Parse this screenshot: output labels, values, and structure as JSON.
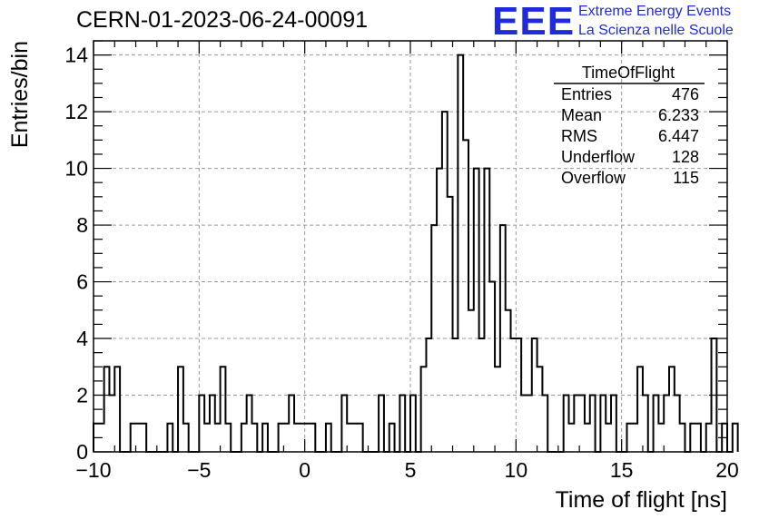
{
  "header": {
    "run_id": "CERN-01-2023-06-24-00091",
    "logo_text": "EEE",
    "logo_line1": "Extreme Energy Events",
    "logo_line2": "La Scienza nelle Scuole",
    "logo_color": "#1f2bd8"
  },
  "stats": {
    "title": "TimeOfFlight",
    "rows": [
      {
        "label": "Entries",
        "value": "476"
      },
      {
        "label": "Mean",
        "value": "6.233"
      },
      {
        "label": "RMS",
        "value": "6.447"
      },
      {
        "label": "Underflow",
        "value": "128"
      },
      {
        "label": "Overflow",
        "value": "115"
      }
    ]
  },
  "chart_data": {
    "type": "histogram",
    "xlabel": "Time of flight [ns]",
    "ylabel": "Entries/bin",
    "xlim": [
      -10,
      20
    ],
    "ylim": [
      0,
      14.5
    ],
    "xticks": [
      -10,
      -5,
      0,
      5,
      10,
      15,
      20
    ],
    "yticks": [
      0,
      2,
      4,
      6,
      8,
      10,
      12,
      14
    ],
    "grid": true,
    "bin_width": 0.25,
    "values": [
      1,
      1,
      3,
      2,
      3,
      0,
      0,
      1,
      1,
      1,
      0,
      0,
      0,
      0,
      1,
      0,
      3,
      1,
      0,
      0,
      2,
      1,
      2,
      1,
      3,
      1,
      0,
      0,
      1,
      2,
      1,
      0,
      1,
      0,
      0,
      1,
      1,
      2,
      1,
      1,
      1,
      1,
      0,
      0,
      1,
      0,
      0,
      2,
      1,
      1,
      1,
      0,
      0,
      0,
      2,
      0,
      1,
      0,
      2,
      0,
      2,
      0,
      3,
      4,
      8,
      10,
      12,
      9,
      4,
      14,
      11,
      5,
      10,
      4,
      10,
      6,
      3,
      8,
      5,
      4,
      4,
      2,
      2,
      4,
      3,
      2,
      0,
      0,
      0,
      2,
      1,
      2,
      2,
      1,
      2,
      0,
      2,
      1,
      2,
      0,
      0,
      1,
      1,
      3,
      2,
      0,
      2,
      1,
      2,
      3,
      2,
      1,
      0,
      1,
      1,
      0,
      1,
      4,
      0,
      1,
      0,
      1
    ],
    "fill": "#ffffff",
    "line_color": "#000000"
  }
}
